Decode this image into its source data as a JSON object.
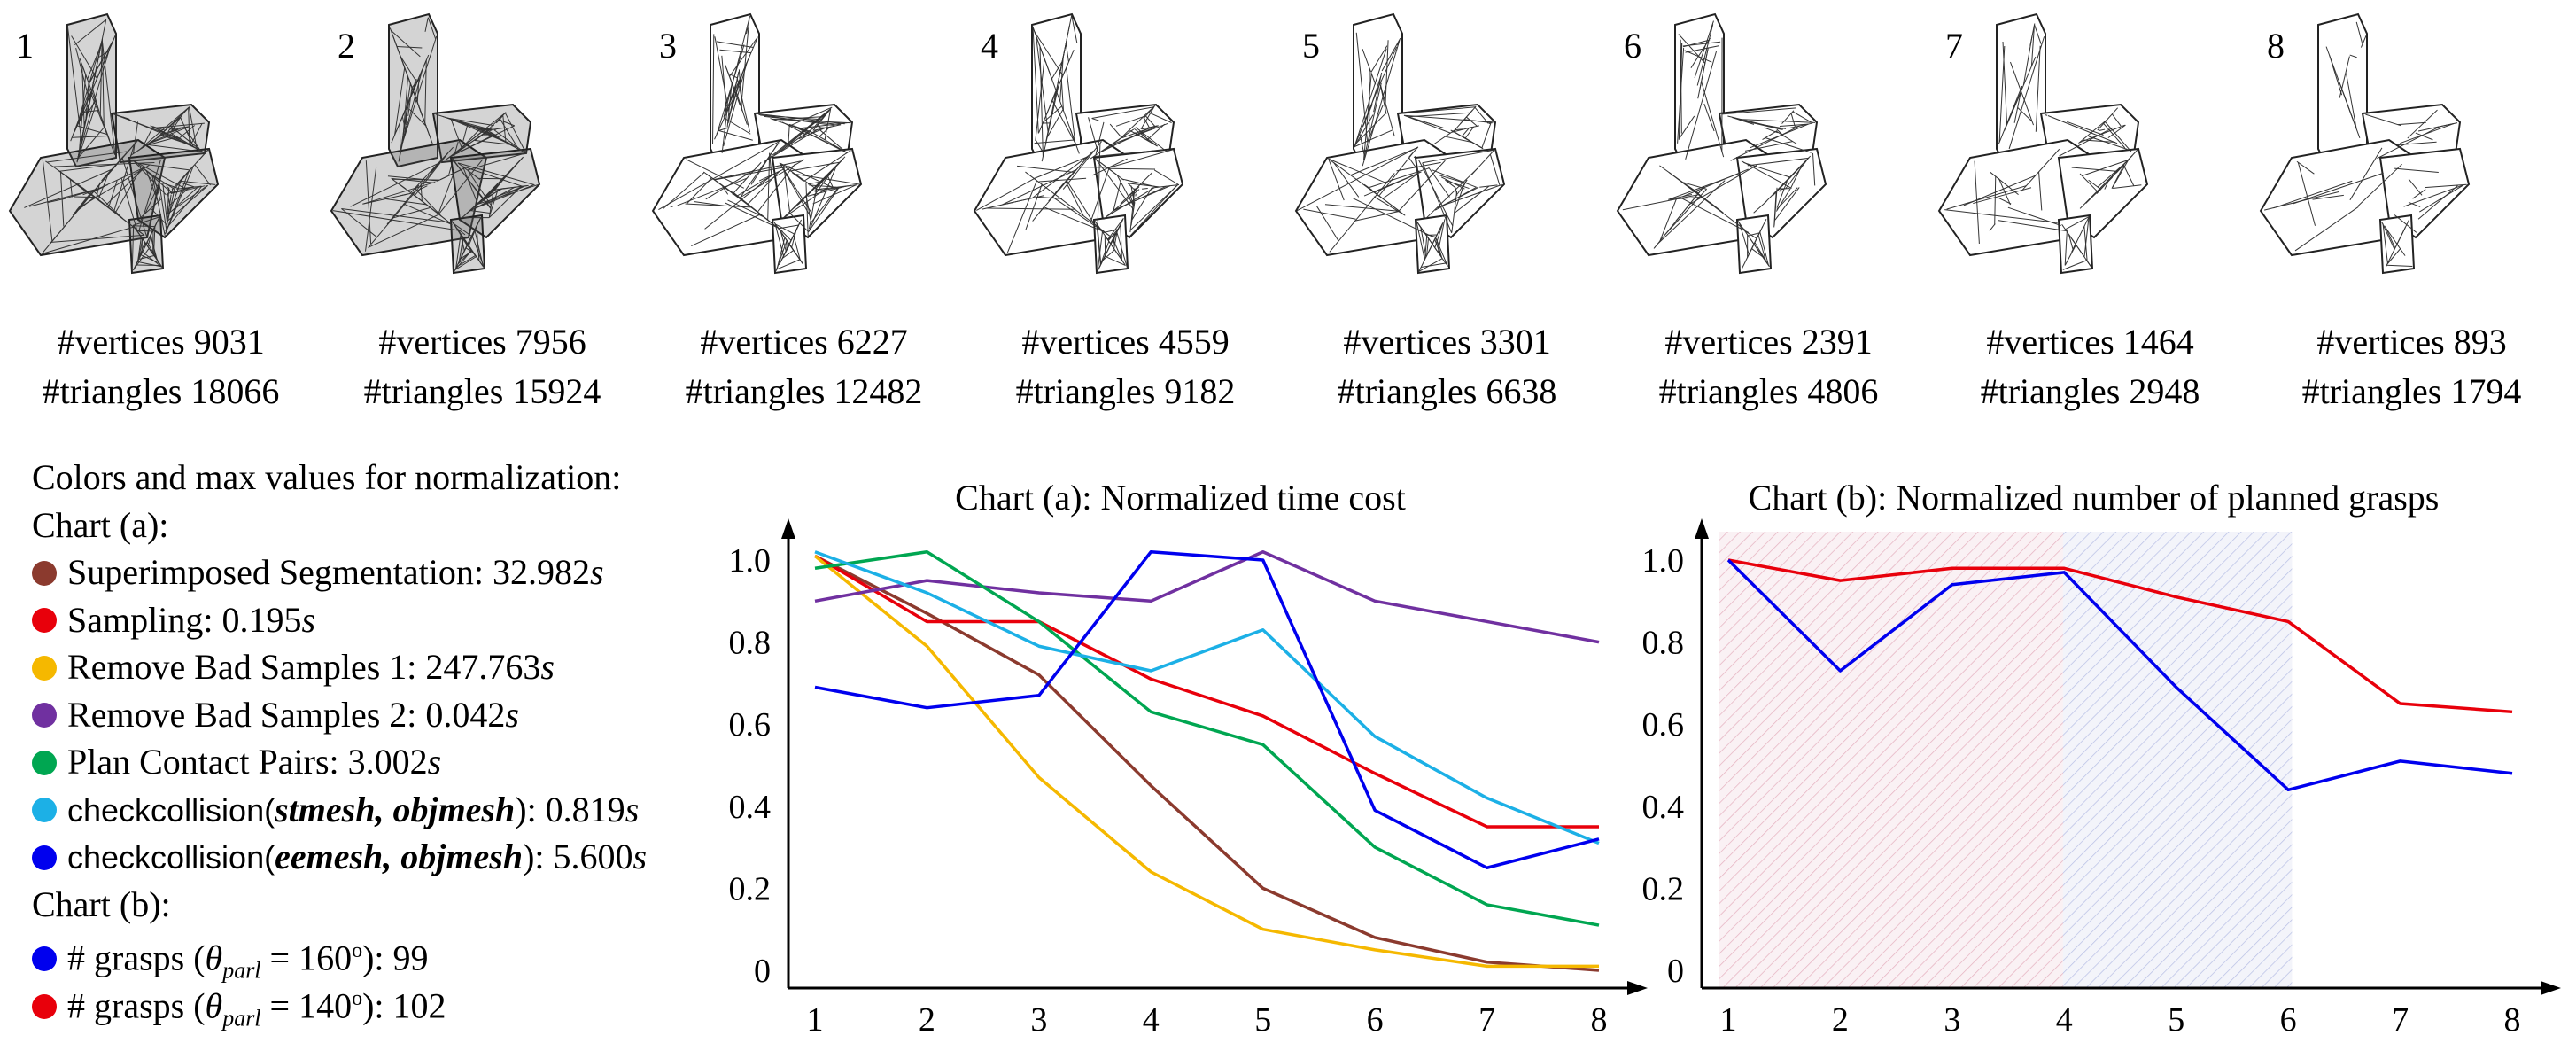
{
  "meshes": [
    {
      "n": "1",
      "vertices": "#vertices 9031",
      "triangles": "#triangles 18066"
    },
    {
      "n": "2",
      "vertices": "#vertices 7956",
      "triangles": "#triangles 15924"
    },
    {
      "n": "3",
      "vertices": "#vertices 6227",
      "triangles": "#triangles 12482"
    },
    {
      "n": "4",
      "vertices": "#vertices 4559",
      "triangles": "#triangles 9182"
    },
    {
      "n": "5",
      "vertices": "#vertices 3301",
      "triangles": "#triangles 6638"
    },
    {
      "n": "6",
      "vertices": "#vertices 2391",
      "triangles": "#triangles 4806"
    },
    {
      "n": "7",
      "vertices": "#vertices 1464",
      "triangles": "#triangles 2948"
    },
    {
      "n": "8",
      "vertices": "#vertices 893",
      "triangles": "#triangles 1794"
    }
  ],
  "legend": {
    "heading": "Colors and max values for normalization:",
    "chart_a_label": "Chart (a):",
    "chart_b_label": "Chart (b):",
    "seg": {
      "label": "Superimposed Segmentation: 32.982",
      "unit": "s",
      "color": "#8b3a2e"
    },
    "samp": {
      "label": "Sampling: 0.195",
      "unit": "s",
      "color": "#e8000b"
    },
    "rbs1": {
      "label": "Remove Bad Samples 1: 247.763",
      "unit": "s",
      "color": "#f5b800"
    },
    "rbs2": {
      "label": "Remove Bad Samples 2: 0.042",
      "unit": "s",
      "color": "#7030a0"
    },
    "pcp": {
      "label": "Plan Contact Pairs: 3.002",
      "unit": "s",
      "color": "#00a651"
    },
    "cc1": {
      "prefix": "checkcollision(",
      "args": "stmesh, objmesh",
      "suffix": "): 0.819",
      "unit": "s",
      "color": "#1cb0e6"
    },
    "cc2": {
      "prefix": "checkcollision(",
      "args": "eemesh, objmesh",
      "suffix": "): 5.600",
      "unit": "s",
      "color": "#0000ee"
    },
    "g160": {
      "prefix": "# grasps (",
      "theta": "θ",
      "sub": "parl",
      "eq": " = 160",
      "deg": "o",
      "rest": "): 99",
      "color": "#0000ee"
    },
    "g140": {
      "prefix": "# grasps (",
      "theta": "θ",
      "sub": "parl",
      "eq": " = 140",
      "deg": "o",
      "rest": "): 102",
      "color": "#e8000b"
    }
  },
  "chart_data": [
    {
      "type": "line",
      "title": "Chart (a): Normalized time cost",
      "x": [
        1,
        2,
        3,
        4,
        5,
        6,
        7,
        8
      ],
      "ylim": [
        0,
        1.05
      ],
      "yticks": [
        "0",
        "0.2",
        "0.4",
        "0.6",
        "0.8",
        "1.0"
      ],
      "series": [
        {
          "color": "#8b3a2e",
          "values": [
            1.01,
            0.87,
            0.72,
            0.45,
            0.2,
            0.08,
            0.02,
            0.0
          ]
        },
        {
          "color": "#e8000b",
          "values": [
            1.01,
            0.85,
            0.85,
            0.71,
            0.62,
            0.48,
            0.35,
            0.35
          ]
        },
        {
          "color": "#f5b800",
          "values": [
            1.01,
            0.79,
            0.47,
            0.24,
            0.1,
            0.05,
            0.01,
            0.01
          ]
        },
        {
          "color": "#7030a0",
          "values": [
            0.9,
            0.95,
            0.92,
            0.9,
            1.02,
            0.9,
            0.85,
            0.8
          ]
        },
        {
          "color": "#00a651",
          "values": [
            0.98,
            1.02,
            0.85,
            0.63,
            0.55,
            0.3,
            0.16,
            0.11
          ]
        },
        {
          "color": "#1cb0e6",
          "values": [
            1.02,
            0.92,
            0.79,
            0.73,
            0.83,
            0.57,
            0.42,
            0.31
          ]
        },
        {
          "color": "#0000ee",
          "values": [
            0.69,
            0.64,
            0.67,
            1.02,
            1.0,
            0.39,
            0.25,
            0.32
          ]
        }
      ]
    },
    {
      "type": "line",
      "title": "Chart (b): Normalized number of planned grasps",
      "x": [
        1,
        2,
        3,
        4,
        5,
        6,
        7,
        8
      ],
      "ylim": [
        0,
        1.05
      ],
      "yticks": [
        "0",
        "0.2",
        "0.4",
        "0.6",
        "0.8",
        "1.0"
      ],
      "shaded_regions": [
        {
          "from": 1,
          "to": 4,
          "color": "#c04060"
        },
        {
          "from": 4,
          "to": 6,
          "color": "#5060c0"
        }
      ],
      "series": [
        {
          "color": "#e8000b",
          "values": [
            1.0,
            0.95,
            0.98,
            0.98,
            0.91,
            0.85,
            0.65,
            0.63
          ]
        },
        {
          "color": "#0000ee",
          "values": [
            1.0,
            0.73,
            0.94,
            0.97,
            0.69,
            0.44,
            0.51,
            0.48
          ]
        }
      ]
    }
  ]
}
